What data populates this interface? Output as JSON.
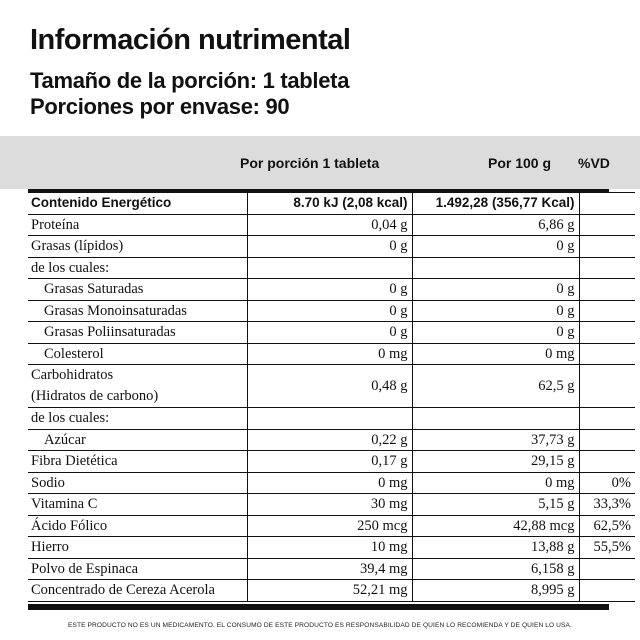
{
  "title": "Información nutrimental",
  "serving_size": "Tamaño de la porción: 1 tableta",
  "servings_per_container": "Porciones por envase: 90",
  "headers": {
    "per_serving": "Por porción 1 tableta",
    "per_100": "Por 100 g",
    "dv": "%VD"
  },
  "rows": [
    {
      "label": "Contenido Energético",
      "per_serving": "8.70 kJ (2,08 kcal)",
      "per_100": "1.492,28 (356,77 Kcal)",
      "dv": ""
    },
    {
      "label": "Proteína",
      "per_serving": "0,04 g",
      "per_100": "6,86 g",
      "dv": ""
    },
    {
      "label": "Grasas (lípidos)",
      "per_serving": "0 g",
      "per_100": "0 g",
      "dv": ""
    },
    {
      "label": "de los cuales:",
      "per_serving": "",
      "per_100": "",
      "dv": ""
    },
    {
      "label": "Grasas Saturadas",
      "per_serving": "0 g",
      "per_100": "0 g",
      "dv": ""
    },
    {
      "label": "Grasas Monoinsaturadas",
      "per_serving": "0 g",
      "per_100": "0 g",
      "dv": ""
    },
    {
      "label": "Grasas Poliinsaturadas",
      "per_serving": "0 g",
      "per_100": "0 g",
      "dv": ""
    },
    {
      "label": "Colesterol",
      "per_serving": "0 mg",
      "per_100": "0 mg",
      "dv": ""
    },
    {
      "label": "Carbohidratos",
      "label2": "(Hidratos de carbono)",
      "per_serving": "0,48 g",
      "per_100": "62,5 g",
      "dv": ""
    },
    {
      "label": "de los cuales:",
      "per_serving": "",
      "per_100": "",
      "dv": ""
    },
    {
      "label": "Azúcar",
      "per_serving": "0,22 g",
      "per_100": "37,73 g",
      "dv": ""
    },
    {
      "label": "Fibra Dietética",
      "per_serving": "0,17 g",
      "per_100": "29,15 g",
      "dv": ""
    },
    {
      "label": "Sodio",
      "per_serving": "0 mg",
      "per_100": "0 mg",
      "dv": "0%"
    },
    {
      "label": "Vitamina C",
      "per_serving": "30 mg",
      "per_100": "5,15 g",
      "dv": "33,3%"
    },
    {
      "label": "Ácido Fólico",
      "per_serving": "250 mcg",
      "per_100": "42,88 mcg",
      "dv": "62,5%"
    },
    {
      "label": "Hierro",
      "per_serving": "10 mg",
      "per_100": "13,88 g",
      "dv": "55,5%"
    },
    {
      "label": "Polvo de Espinaca",
      "per_serving": "39,4 mg",
      "per_100": "6,158 g",
      "dv": ""
    },
    {
      "label": "Concentrado de Cereza Acerola",
      "per_serving": "52,21 mg",
      "per_100": "8,995 g",
      "dv": ""
    }
  ],
  "footer": "ESTE PRODUCTO NO ES UN MEDICAMENTO. EL CONSUMO DE ESTE PRODUCTO ES RESPONSABILIDAD DE QUIEN LO RECOMIENDA Y DE QUIEN LO USA."
}
